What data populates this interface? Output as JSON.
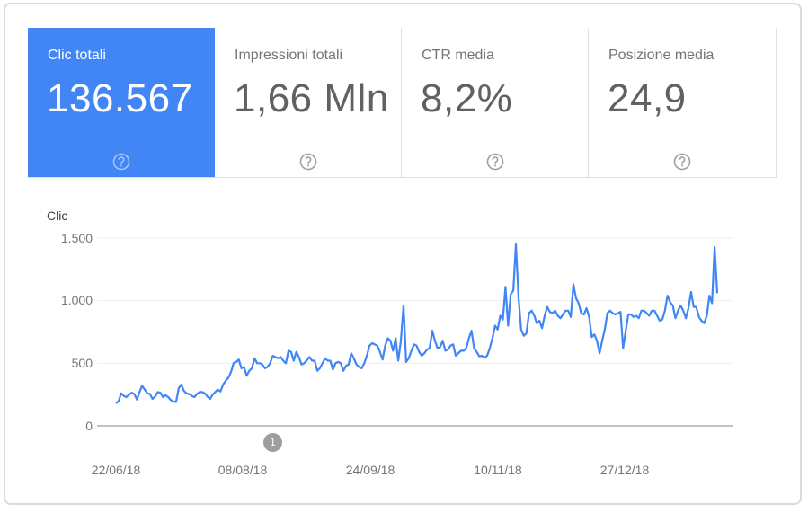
{
  "metrics": [
    {
      "label": "Clic totali",
      "value": "136.567",
      "active": true,
      "help_icon": "help-circle-icon"
    },
    {
      "label": "Impressioni totali",
      "value": "1,66 Mln",
      "active": false,
      "help_icon": "help-circle-icon"
    },
    {
      "label": "CTR media",
      "value": "8,2%",
      "active": false,
      "help_icon": "help-circle-icon"
    },
    {
      "label": "Posizione media",
      "value": "24,9",
      "active": false,
      "help_icon": "help-circle-icon"
    }
  ],
  "colors": {
    "accent": "#4285f4",
    "line": "#4285f4",
    "grid": "#eeeeee",
    "axis": "#9e9e9e",
    "annotation": "#9e9e9e"
  },
  "annotation": {
    "label": "1"
  },
  "chart_data": {
    "type": "line",
    "title": "",
    "xlabel": "",
    "ylabel": "Clic",
    "ylim": [
      0,
      1500
    ],
    "yticks": [
      "0",
      "500",
      "1.000",
      "1.500"
    ],
    "ytick_values": [
      0,
      500,
      1000,
      1500
    ],
    "xtick_labels": [
      "22/06/18",
      "08/08/18",
      "24/09/18",
      "10/11/18",
      "27/12/18"
    ],
    "grid": true,
    "legend": "none",
    "series": [
      {
        "name": "Clic",
        "values": [
          180,
          195,
          260,
          240,
          230,
          250,
          265,
          255,
          210,
          270,
          320,
          290,
          260,
          255,
          215,
          235,
          270,
          265,
          230,
          245,
          230,
          205,
          195,
          190,
          300,
          330,
          280,
          260,
          255,
          240,
          230,
          255,
          270,
          270,
          260,
          235,
          215,
          250,
          270,
          290,
          275,
          330,
          360,
          385,
          430,
          500,
          510,
          530,
          460,
          470,
          400,
          440,
          460,
          540,
          500,
          500,
          490,
          460,
          470,
          500,
          560,
          550,
          540,
          550,
          520,
          500,
          600,
          590,
          520,
          590,
          550,
          490,
          500,
          520,
          550,
          520,
          520,
          440,
          460,
          500,
          540,
          520,
          520,
          450,
          500,
          510,
          500,
          440,
          480,
          490,
          580,
          540,
          490,
          470,
          460,
          500,
          560,
          640,
          660,
          650,
          640,
          590,
          530,
          640,
          700,
          680,
          600,
          700,
          520,
          680,
          960,
          510,
          540,
          600,
          650,
          640,
          590,
          560,
          580,
          610,
          620,
          760,
          680,
          620,
          630,
          680,
          600,
          610,
          640,
          650,
          560,
          580,
          600,
          600,
          620,
          700,
          760,
          620,
          590,
          555,
          560,
          545,
          560,
          620,
          700,
          800,
          770,
          880,
          850,
          1110,
          800,
          1050,
          1080,
          1450,
          1030,
          770,
          720,
          740,
          900,
          920,
          880,
          820,
          840,
          780,
          880,
          950,
          910,
          900,
          920,
          880,
          860,
          890,
          920,
          920,
          870,
          1130,
          1020,
          980,
          900,
          890,
          940,
          870,
          710,
          730,
          680,
          580,
          680,
          770,
          900,
          920,
          900,
          890,
          900,
          910,
          620,
          760,
          890,
          890,
          870,
          880,
          860,
          920,
          920,
          900,
          880,
          920,
          920,
          880,
          840,
          850,
          920,
          1040,
          990,
          960,
          860,
          920,
          960,
          920,
          860,
          940,
          1070,
          950,
          950,
          870,
          840,
          820,
          880,
          1040,
          980,
          1430,
          1060
        ]
      }
    ]
  }
}
